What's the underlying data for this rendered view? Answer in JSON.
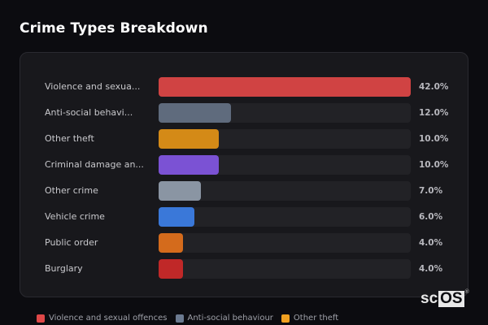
{
  "title": "Crime Types Breakdown",
  "chart_data": {
    "type": "bar",
    "orientation": "horizontal",
    "title": "Crime Types Breakdown",
    "categories": [
      "Violence and sexual offences",
      "Anti-social behaviour",
      "Other theft",
      "Criminal damage and arson",
      "Other crime",
      "Vehicle crime",
      "Public order",
      "Burglary"
    ],
    "display_labels": [
      "Violence and sexua...",
      "Anti-social behavi...",
      "Other theft",
      "Criminal damage an...",
      "Other crime",
      "Vehicle crime",
      "Public order",
      "Burglary"
    ],
    "values": [
      42.0,
      12.0,
      10.0,
      10.0,
      7.0,
      6.0,
      4.0,
      4.0
    ],
    "value_labels": [
      "42.0%",
      "12.0%",
      "10.0%",
      "10.0%",
      "7.0%",
      "6.0%",
      "4.0%",
      "4.0%"
    ],
    "colors": [
      "#d04343",
      "#5f6b7d",
      "#d48a17",
      "#7b52d4",
      "#8a95a3",
      "#3a78d9",
      "#d46b1c",
      "#c02828"
    ],
    "unit": "%",
    "xlabel": "",
    "ylabel": "",
    "grid": false,
    "bar_scale": "relative to max",
    "legend": {
      "position": "bottom",
      "entries": [
        {
          "label": "Violence and sexual offences",
          "color": "#e04848"
        },
        {
          "label": "Anti-social behaviour",
          "color": "#6b7a90"
        },
        {
          "label": "Other theft",
          "color": "#f0a020"
        }
      ]
    }
  },
  "watermark": {
    "sc": "sc",
    "os": "OS",
    "reg": "®"
  }
}
